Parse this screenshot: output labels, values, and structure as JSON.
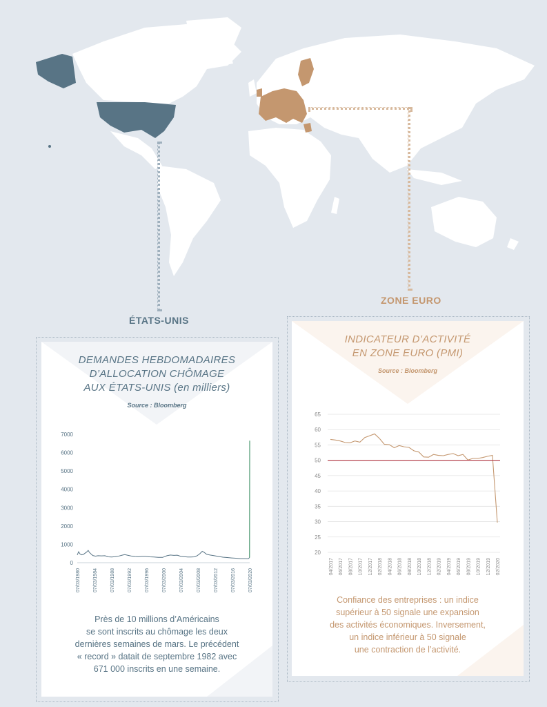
{
  "regions": {
    "us": {
      "label": "ÉTATS-UNIS",
      "color": "#587485"
    },
    "eu": {
      "label": "ZONE EURO",
      "color": "#c4976f"
    }
  },
  "panels": {
    "us": {
      "title_lines": [
        "DEMANDES HEBDOMADAIRES",
        "D’ALLOCATION CHÔMAGE",
        "AUX ÉTATS-UNIS (en milliers)"
      ],
      "source": "Source : Bloomberg",
      "caption_lines": [
        "Près de 10 millions d’Américains",
        "se sont inscrits au chômage les deux",
        "dernières semaines de mars. Le précédent",
        "« record » datait de septembre 1982 avec",
        "671 000 inscrits en une semaine."
      ]
    },
    "eu": {
      "title_lines": [
        "INDICATEUR D’ACTIVITÉ",
        "EN ZONE EURO (PMI)"
      ],
      "source": "Source : Bloomberg",
      "caption_lines": [
        "Confiance des entreprises : un indice",
        "supérieur à 50 signale une expansion",
        "des activités économiques. Inversement,",
        "un indice inférieur à 50 signale",
        "une contraction de l’activité."
      ]
    }
  },
  "chart_data": [
    {
      "id": "us_claims",
      "type": "line",
      "ylim": [
        0,
        7000
      ],
      "yticks": [
        0,
        1000,
        2000,
        3000,
        4000,
        5000,
        6000,
        7000
      ],
      "xlim": [
        1980.18,
        2020.22
      ],
      "xtick_labels": [
        "07/03/1980",
        "07/03/1984",
        "07/03/1988",
        "07/03/1992",
        "07/03/1996",
        "07/03/2000",
        "07/03/2004",
        "07/03/2008",
        "07/03/2012",
        "07/03/2016",
        "07/03/2020"
      ],
      "series": [
        {
          "color": "#587485",
          "highlight_color": "#4f9a73",
          "x": [
            1980.18,
            1980.5,
            1980.8,
            1981.2,
            1981.6,
            1982.0,
            1982.4,
            1982.72,
            1983.0,
            1983.4,
            1983.8,
            1984.4,
            1985.0,
            1985.8,
            1986.6,
            1987.4,
            1988.2,
            1989.0,
            1989.8,
            1990.6,
            1991.2,
            1992.0,
            1992.8,
            1993.6,
            1994.4,
            1995.2,
            1996.0,
            1997.0,
            1998.0,
            1999.0,
            2000.0,
            2001.0,
            2001.8,
            2002.6,
            2003.4,
            2004.2,
            2005.0,
            2005.8,
            2006.6,
            2007.4,
            2008.0,
            2008.6,
            2009.2,
            2009.6,
            2010.2,
            2011.0,
            2012.0,
            2013.0,
            2014.0,
            2015.0,
            2016.0,
            2017.0,
            2018.0,
            2019.0,
            2019.9,
            2020.18,
            2020.2,
            2020.22
          ],
          "y": [
            420,
            600,
            480,
            430,
            450,
            520,
            590,
            671,
            560,
            470,
            390,
            360,
            380,
            370,
            380,
            320,
            310,
            330,
            360,
            410,
            440,
            400,
            360,
            340,
            330,
            350,
            350,
            320,
            310,
            290,
            290,
            380,
            420,
            400,
            410,
            350,
            330,
            310,
            310,
            320,
            380,
            480,
            620,
            570,
            460,
            420,
            380,
            340,
            300,
            280,
            260,
            245,
            220,
            220,
            215,
            280,
            3300,
            6650
          ]
        }
      ]
    },
    {
      "id": "pmi_eurozone",
      "type": "line",
      "ylim": [
        20,
        65
      ],
      "yticks": [
        20,
        25,
        30,
        35,
        40,
        45,
        50,
        55,
        60,
        65
      ],
      "reference_line": 50,
      "reference_color": "#b0323f",
      "xtick_labels": [
        "04/2017",
        "06/2017",
        "08/2017",
        "10/2017",
        "12/2017",
        "02/2018",
        "04/2018",
        "06/2018",
        "08/2018",
        "10/2018",
        "12/2018",
        "02/2019",
        "04/2019",
        "06/2019",
        "08/2019",
        "10/2019",
        "12/2019",
        "02/2020"
      ],
      "series": [
        {
          "color": "#c4976f",
          "values": [
            56.8,
            56.6,
            56.3,
            55.8,
            55.7,
            56.3,
            55.9,
            57.4,
            58.0,
            58.6,
            57.1,
            55.2,
            55.1,
            54.1,
            54.8,
            54.4,
            54.2,
            53.1,
            52.7,
            51.1,
            51.0,
            51.9,
            51.6,
            51.5,
            51.9,
            52.2,
            51.5,
            51.9,
            50.1,
            50.6,
            50.6,
            50.9,
            51.3,
            51.6,
            29.7
          ]
        }
      ]
    }
  ]
}
